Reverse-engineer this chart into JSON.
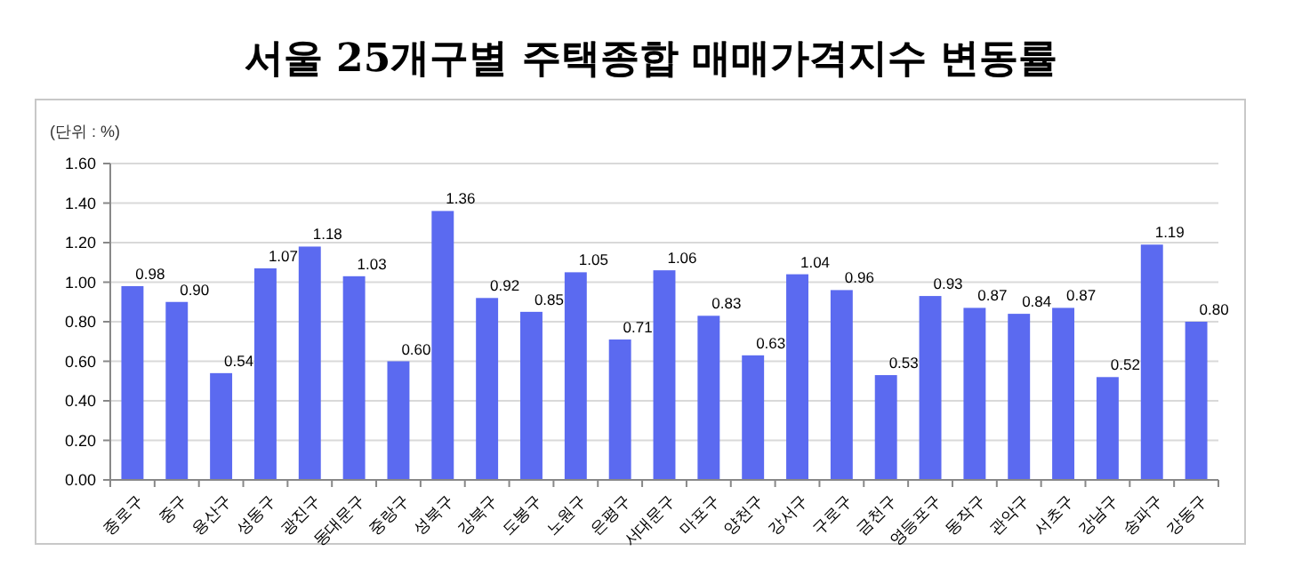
{
  "chart_data": {
    "type": "bar",
    "title": "서울 25개구별 주택종합 매매가격지수 변동률",
    "ylabel": "(단위 : %)",
    "categories": [
      "종로구",
      "중구",
      "용산구",
      "성동구",
      "광진구",
      "동대문구",
      "중랑구",
      "성북구",
      "강북구",
      "도봉구",
      "노원구",
      "은평구",
      "서대문구",
      "마포구",
      "양천구",
      "강서구",
      "구로구",
      "금천구",
      "영등포구",
      "동작구",
      "관악구",
      "서초구",
      "강남구",
      "송파구",
      "강동구"
    ],
    "values": [
      0.98,
      0.9,
      0.54,
      1.07,
      1.18,
      1.03,
      0.6,
      1.36,
      0.92,
      0.85,
      1.05,
      0.71,
      1.06,
      0.83,
      0.63,
      1.04,
      0.96,
      0.53,
      0.93,
      0.87,
      0.84,
      0.87,
      0.52,
      1.19,
      0.8
    ],
    "value_labels": [
      "0.98",
      "0.90",
      "0.54",
      "1.07",
      "1.18",
      "1.03",
      "0.60",
      "1.36",
      "0.92",
      "0.85",
      "1.05",
      "0.71",
      "1.06",
      "0.83",
      "0.63",
      "1.04",
      "0.96",
      "0.53",
      "0.93",
      "0.87",
      "0.84",
      "0.87",
      "0.52",
      "1.19",
      "0.80"
    ],
    "color": "#5b6af0",
    "ylim": [
      0,
      1.6
    ],
    "yticks": [
      {
        "value": 0,
        "label": "0.00"
      },
      {
        "value": 0.2,
        "label": "0.20"
      },
      {
        "value": 0.4,
        "label": "0.40"
      },
      {
        "value": 0.6,
        "label": "0.60"
      },
      {
        "value": 0.8,
        "label": "0.80"
      },
      {
        "value": 1,
        "label": "1.00"
      },
      {
        "value": 1.2,
        "label": "1.20"
      },
      {
        "value": 1.4,
        "label": "1.40"
      },
      {
        "value": 1.6,
        "label": "1.60"
      }
    ],
    "grid": "y"
  }
}
